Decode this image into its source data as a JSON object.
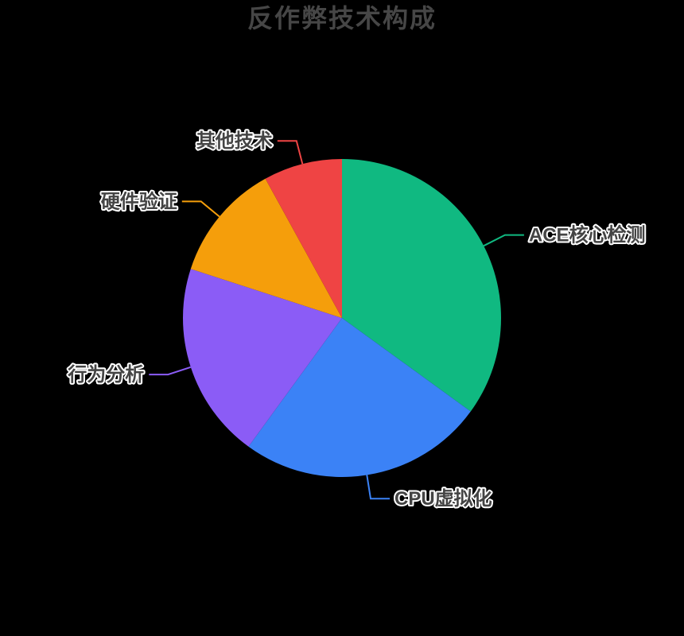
{
  "title": "反作弊技术构成",
  "style": {
    "background": "#000000",
    "title_color": "#464646",
    "label_color": "#444444",
    "label_outline": "#ffffff"
  },
  "chart_data": {
    "type": "pie",
    "title": "反作弊技术构成",
    "legend": "none",
    "start_angle": "top",
    "direction": "clockwise",
    "unit": "percent",
    "slices": [
      {
        "label": "ACE核心检测",
        "value": 35,
        "color": "#10b981"
      },
      {
        "label": "CPU虚拟化",
        "value": 25,
        "color": "#3b82f6"
      },
      {
        "label": "行为分析",
        "value": 20,
        "color": "#8b5cf6"
      },
      {
        "label": "硬件验证",
        "value": 12,
        "color": "#f59e0b"
      },
      {
        "label": "其他技术",
        "value": 8,
        "color": "#ef4444"
      }
    ]
  }
}
